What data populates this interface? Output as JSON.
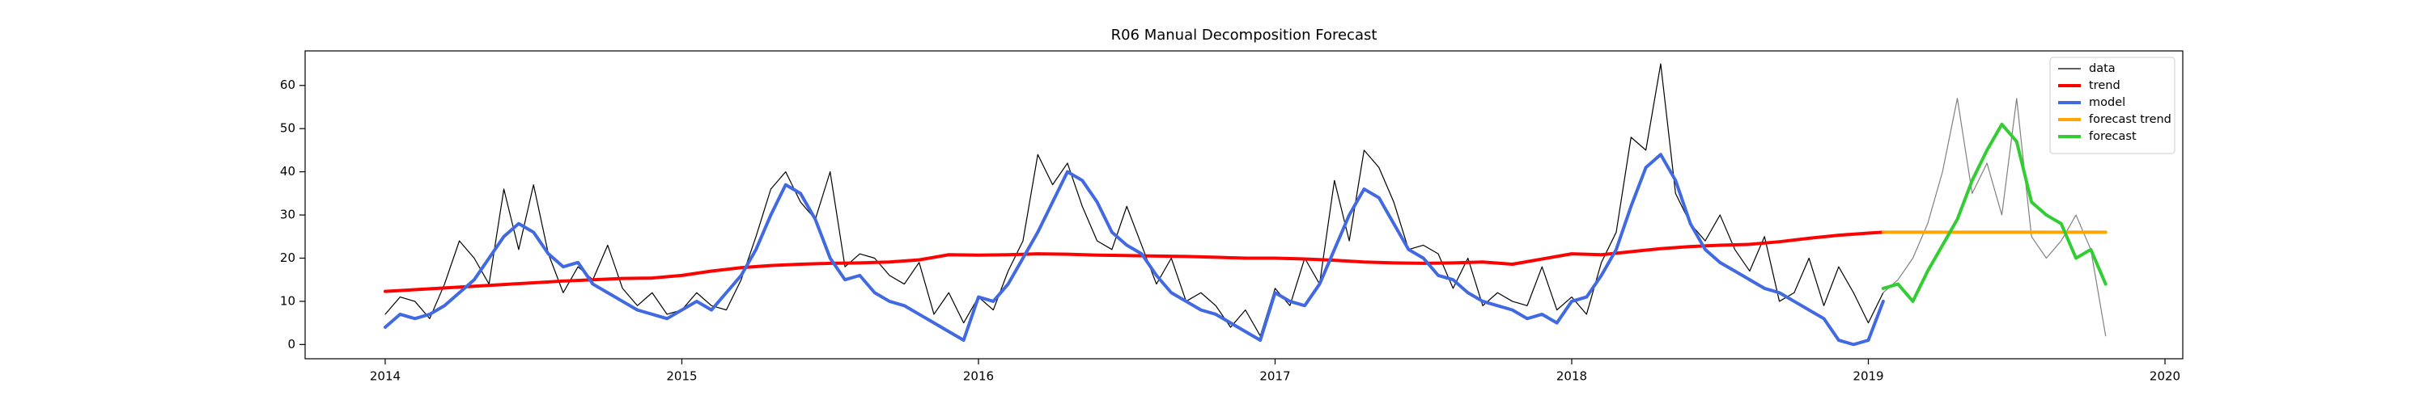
{
  "chart_data": {
    "type": "line",
    "title": "R06 Manual Decomposition Forecast",
    "xlim": [
      2013.73,
      2020.06
    ],
    "ylim": [
      -3.3,
      68
    ],
    "xticks": [
      2014,
      2015,
      2016,
      2017,
      2018,
      2019,
      2020
    ],
    "yticks": [
      0,
      10,
      20,
      30,
      40,
      50,
      60
    ],
    "legend": "upper right",
    "series": [
      {
        "name": "data",
        "color": "#000000",
        "linewidth": 1.2,
        "x": [
          2014.0,
          2014.05,
          2014.1,
          2014.15,
          2014.2,
          2014.25,
          2014.3,
          2014.35,
          2014.4,
          2014.45,
          2014.5,
          2014.55,
          2014.6,
          2014.65,
          2014.7,
          2014.75,
          2014.8,
          2014.85,
          2014.9,
          2014.95,
          2015.0,
          2015.05,
          2015.1,
          2015.15,
          2015.2,
          2015.25,
          2015.3,
          2015.35,
          2015.4,
          2015.45,
          2015.5,
          2015.55,
          2015.6,
          2015.65,
          2015.7,
          2015.75,
          2015.8,
          2015.85,
          2015.9,
          2015.95,
          2016.0,
          2016.05,
          2016.1,
          2016.15,
          2016.2,
          2016.25,
          2016.3,
          2016.35,
          2016.4,
          2016.45,
          2016.5,
          2016.55,
          2016.6,
          2016.65,
          2016.7,
          2016.75,
          2016.8,
          2016.85,
          2016.9,
          2016.95,
          2017.0,
          2017.05,
          2017.1,
          2017.15,
          2017.2,
          2017.25,
          2017.3,
          2017.35,
          2017.4,
          2017.45,
          2017.5,
          2017.55,
          2017.6,
          2017.65,
          2017.7,
          2017.75,
          2017.8,
          2017.85,
          2017.9,
          2017.95,
          2018.0,
          2018.05,
          2018.1,
          2018.15,
          2018.2,
          2018.25,
          2018.3,
          2018.35,
          2018.4,
          2018.45,
          2018.5,
          2018.55,
          2018.6,
          2018.65,
          2018.7,
          2018.75,
          2018.8,
          2018.85,
          2018.9,
          2018.95,
          2019.0,
          2019.05
        ],
        "values": [
          7,
          11,
          10,
          6,
          14,
          24,
          20,
          14,
          36,
          22,
          37,
          21,
          12,
          18,
          15,
          23,
          13,
          9,
          12,
          7,
          8,
          12,
          9,
          8,
          15,
          25,
          36,
          40,
          33,
          29,
          40,
          18,
          21,
          20,
          16,
          14,
          19,
          7,
          12,
          5,
          11,
          8,
          17,
          24,
          44,
          37,
          42,
          32,
          24,
          22,
          32,
          23,
          14,
          20,
          10,
          12,
          9,
          4,
          8,
          2,
          13,
          9,
          20,
          14,
          38,
          24,
          45,
          41,
          33,
          22,
          23,
          21,
          13,
          20,
          9,
          12,
          10,
          9,
          18,
          8,
          11,
          7,
          19,
          26,
          48,
          45,
          65,
          35,
          28,
          24,
          30,
          22,
          17,
          25,
          10,
          12,
          20,
          9,
          18,
          12,
          5,
          12
        ]
      },
      {
        "color": "#808080",
        "linewidth": 1.2,
        "x": [
          2019.05,
          2019.1,
          2019.15,
          2019.2,
          2019.25,
          2019.3,
          2019.35,
          2019.4,
          2019.45,
          2019.5,
          2019.55,
          2019.6,
          2019.65,
          2019.7,
          2019.75,
          2019.8
        ],
        "values": [
          12,
          15,
          20,
          28,
          40,
          57,
          35,
          42,
          30,
          57,
          25,
          20,
          24,
          30,
          22,
          2
        ]
      },
      {
        "name": "trend",
        "color": "#ff0000",
        "linewidth": 4,
        "x": [
          2014.0,
          2014.1,
          2014.2,
          2014.3,
          2014.4,
          2014.5,
          2014.6,
          2014.7,
          2014.8,
          2014.9,
          2015.0,
          2015.1,
          2015.2,
          2015.3,
          2015.4,
          2015.5,
          2015.6,
          2015.7,
          2015.8,
          2015.9,
          2016.0,
          2016.1,
          2016.2,
          2016.3,
          2016.4,
          2016.5,
          2016.6,
          2016.7,
          2016.8,
          2016.9,
          2017.0,
          2017.1,
          2017.2,
          2017.3,
          2017.4,
          2017.5,
          2017.6,
          2017.7,
          2017.8,
          2017.9,
          2018.0,
          2018.1,
          2018.2,
          2018.3,
          2018.4,
          2018.5,
          2018.6,
          2018.7,
          2018.8,
          2018.9,
          2019.0,
          2019.05
        ],
        "values": [
          12.3,
          12.7,
          13.1,
          13.5,
          13.9,
          14.3,
          14.7,
          15,
          15.3,
          15.4,
          16,
          17,
          17.8,
          18.3,
          18.6,
          18.8,
          18.9,
          19.1,
          19.6,
          20.8,
          20.7,
          20.8,
          21,
          20.9,
          20.7,
          20.6,
          20.5,
          20.4,
          20.2,
          20,
          20,
          19.8,
          19.5,
          19.1,
          18.9,
          18.8,
          18.9,
          19.1,
          18.6,
          19.8,
          21,
          20.8,
          21.5,
          22.2,
          22.7,
          23,
          23.2,
          23.8,
          24.6,
          25.3,
          25.8,
          26
        ]
      },
      {
        "name": "model",
        "color": "#4169e1",
        "linewidth": 4,
        "x": [
          2014.0,
          2014.05,
          2014.1,
          2014.15,
          2014.2,
          2014.25,
          2014.3,
          2014.35,
          2014.4,
          2014.45,
          2014.5,
          2014.55,
          2014.6,
          2014.65,
          2014.7,
          2014.75,
          2014.8,
          2014.85,
          2014.9,
          2014.95,
          2015.0,
          2015.05,
          2015.1,
          2015.15,
          2015.2,
          2015.25,
          2015.3,
          2015.35,
          2015.4,
          2015.45,
          2015.5,
          2015.55,
          2015.6,
          2015.65,
          2015.7,
          2015.75,
          2015.8,
          2015.85,
          2015.9,
          2015.95,
          2016.0,
          2016.05,
          2016.1,
          2016.15,
          2016.2,
          2016.25,
          2016.3,
          2016.35,
          2016.4,
          2016.45,
          2016.5,
          2016.55,
          2016.6,
          2016.65,
          2016.7,
          2016.75,
          2016.8,
          2016.85,
          2016.9,
          2016.95,
          2017.0,
          2017.05,
          2017.1,
          2017.15,
          2017.2,
          2017.25,
          2017.3,
          2017.35,
          2017.4,
          2017.45,
          2017.5,
          2017.55,
          2017.6,
          2017.65,
          2017.7,
          2017.75,
          2017.8,
          2017.85,
          2017.9,
          2017.95,
          2018.0,
          2018.05,
          2018.1,
          2018.15,
          2018.2,
          2018.25,
          2018.3,
          2018.35,
          2018.4,
          2018.45,
          2018.5,
          2018.55,
          2018.6,
          2018.65,
          2018.7,
          2018.75,
          2018.8,
          2018.85,
          2018.9,
          2018.95,
          2019.0,
          2019.05
        ],
        "values": [
          4,
          7,
          6,
          7,
          9,
          12,
          15,
          20,
          25,
          28,
          26,
          21,
          18,
          19,
          14,
          12,
          10,
          8,
          7,
          6,
          8,
          10,
          8,
          12,
          16,
          22,
          30,
          37,
          35,
          29,
          20,
          15,
          16,
          12,
          10,
          9,
          7,
          5,
          3,
          1,
          11,
          10,
          14,
          20,
          26,
          33,
          40,
          38,
          33,
          26,
          23,
          21,
          16,
          12,
          10,
          8,
          7,
          5,
          3,
          1,
          12,
          10,
          9,
          14,
          22,
          30,
          36,
          34,
          28,
          22,
          20,
          16,
          15,
          12,
          10,
          9,
          8,
          6,
          7,
          5,
          10,
          11,
          16,
          22,
          32,
          41,
          44,
          38,
          28,
          22,
          19,
          17,
          15,
          13,
          12,
          10,
          8,
          6,
          1,
          0,
          1,
          10
        ]
      },
      {
        "name": "forecast trend",
        "color": "#ffa500",
        "linewidth": 4,
        "x": [
          2019.05,
          2019.8
        ],
        "values": [
          26,
          26
        ]
      },
      {
        "name": "forecast",
        "color": "#32cd32",
        "linewidth": 4,
        "x": [
          2019.05,
          2019.1,
          2019.15,
          2019.2,
          2019.25,
          2019.3,
          2019.35,
          2019.4,
          2019.45,
          2019.5,
          2019.55,
          2019.6,
          2019.65,
          2019.7,
          2019.75,
          2019.8
        ],
        "values": [
          13,
          14,
          10,
          17,
          23,
          29,
          38,
          45,
          51,
          47,
          33,
          30,
          28,
          20,
          22,
          14
        ]
      }
    ]
  }
}
